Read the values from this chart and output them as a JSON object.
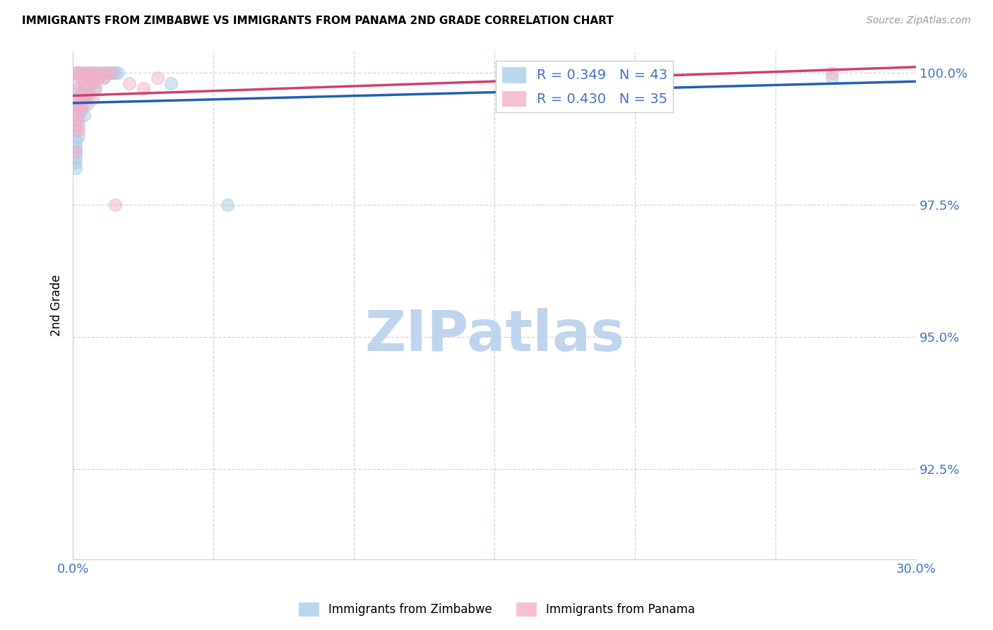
{
  "title": "IMMIGRANTS FROM ZIMBABWE VS IMMIGRANTS FROM PANAMA 2ND GRADE CORRELATION CHART",
  "source": "Source: ZipAtlas.com",
  "ylabel": "2nd Grade",
  "xlim": [
    0.0,
    0.3
  ],
  "ylim": [
    0.908,
    1.004
  ],
  "xtick_labels": [
    "0.0%",
    "30.0%"
  ],
  "xtick_positions": [
    0.0,
    0.3
  ],
  "ytick_labels": [
    "92.5%",
    "95.0%",
    "97.5%",
    "100.0%"
  ],
  "ytick_positions": [
    0.925,
    0.95,
    0.975,
    1.0
  ],
  "legend_entries": [
    {
      "label": "R = 0.349   N = 43"
    },
    {
      "label": "R = 0.430   N = 35"
    }
  ],
  "bottom_legend": [
    "Immigrants from Zimbabwe",
    "Immigrants from Panama"
  ],
  "blue_color": "#a8cce8",
  "pink_color": "#f4b0c8",
  "trend_blue": "#2060b8",
  "trend_pink": "#d04070",
  "watermark_zip_color": "#c0d4ee",
  "watermark_atlas_color": "#b8cce4",
  "watermark_fontsize": 58,
  "zimbabwe_points": [
    [
      0.001,
      1.0
    ],
    [
      0.002,
      1.0
    ],
    [
      0.003,
      1.0
    ],
    [
      0.005,
      1.0
    ],
    [
      0.007,
      1.0
    ],
    [
      0.008,
      1.0
    ],
    [
      0.01,
      1.0
    ],
    [
      0.012,
      1.0
    ],
    [
      0.013,
      1.0
    ],
    [
      0.014,
      1.0
    ],
    [
      0.015,
      1.0
    ],
    [
      0.016,
      1.0
    ],
    [
      0.006,
      0.999
    ],
    [
      0.009,
      0.999
    ],
    [
      0.011,
      0.999
    ],
    [
      0.004,
      0.998
    ],
    [
      0.007,
      0.998
    ],
    [
      0.002,
      0.997
    ],
    [
      0.005,
      0.997
    ],
    [
      0.008,
      0.997
    ],
    [
      0.003,
      0.996
    ],
    [
      0.006,
      0.996
    ],
    [
      0.001,
      0.995
    ],
    [
      0.004,
      0.995
    ],
    [
      0.002,
      0.994
    ],
    [
      0.005,
      0.994
    ],
    [
      0.001,
      0.993
    ],
    [
      0.003,
      0.993
    ],
    [
      0.002,
      0.992
    ],
    [
      0.004,
      0.992
    ],
    [
      0.001,
      0.991
    ],
    [
      0.002,
      0.99
    ],
    [
      0.001,
      0.989
    ],
    [
      0.002,
      0.988
    ],
    [
      0.001,
      0.987
    ],
    [
      0.001,
      0.986
    ],
    [
      0.001,
      0.985
    ],
    [
      0.001,
      0.984
    ],
    [
      0.001,
      0.983
    ],
    [
      0.001,
      0.982
    ],
    [
      0.035,
      0.998
    ],
    [
      0.055,
      0.975
    ],
    [
      0.27,
      0.999
    ]
  ],
  "panama_points": [
    [
      0.001,
      1.0
    ],
    [
      0.002,
      1.0
    ],
    [
      0.004,
      1.0
    ],
    [
      0.006,
      1.0
    ],
    [
      0.008,
      1.0
    ],
    [
      0.01,
      1.0
    ],
    [
      0.012,
      1.0
    ],
    [
      0.014,
      1.0
    ],
    [
      0.003,
      0.999
    ],
    [
      0.005,
      0.999
    ],
    [
      0.007,
      0.999
    ],
    [
      0.009,
      0.999
    ],
    [
      0.011,
      0.999
    ],
    [
      0.03,
      0.999
    ],
    [
      0.002,
      0.998
    ],
    [
      0.006,
      0.998
    ],
    [
      0.02,
      0.998
    ],
    [
      0.004,
      0.997
    ],
    [
      0.008,
      0.997
    ],
    [
      0.025,
      0.997
    ],
    [
      0.001,
      0.996
    ],
    [
      0.005,
      0.996
    ],
    [
      0.003,
      0.995
    ],
    [
      0.007,
      0.995
    ],
    [
      0.002,
      0.994
    ],
    [
      0.004,
      0.994
    ],
    [
      0.001,
      0.993
    ],
    [
      0.003,
      0.993
    ],
    [
      0.001,
      0.992
    ],
    [
      0.002,
      0.991
    ],
    [
      0.001,
      0.99
    ],
    [
      0.002,
      0.989
    ],
    [
      0.001,
      0.985
    ],
    [
      0.015,
      0.975
    ],
    [
      0.27,
      1.0
    ]
  ]
}
